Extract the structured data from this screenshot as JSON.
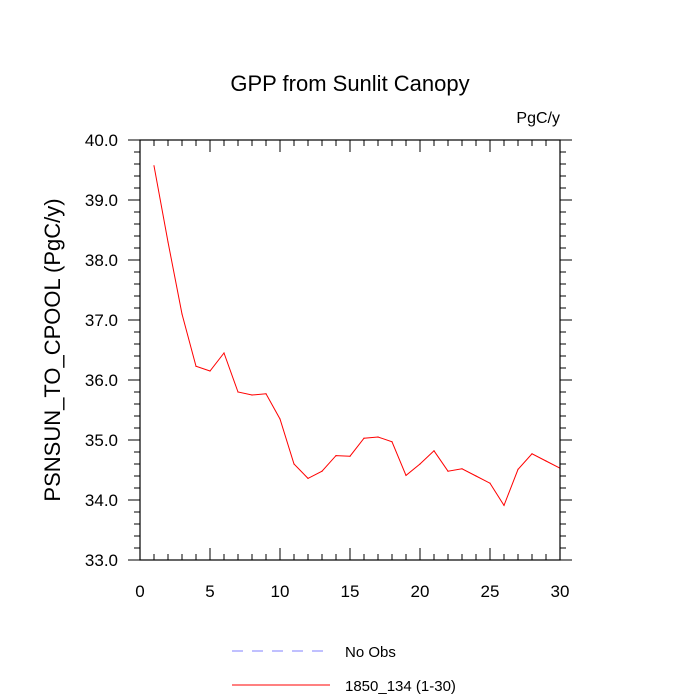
{
  "chart_data": {
    "type": "line",
    "title": "GPP from Sunlit Canopy",
    "units_label": "PgC/y",
    "xlabel": "",
    "ylabel": "PSNSUN_TO_CPOOL  (PgC/y)",
    "xlim": [
      0,
      30
    ],
    "ylim": [
      33.0,
      40.0
    ],
    "x_ticks": [
      "0",
      "5",
      "10",
      "15",
      "20",
      "25",
      "30"
    ],
    "y_ticks": [
      "33.0",
      "34.0",
      "35.0",
      "36.0",
      "37.0",
      "38.0",
      "39.0",
      "40.0"
    ],
    "grid": false,
    "legend_position": "bottom",
    "series": [
      {
        "name": "1850_134 (1-30)",
        "color": "#ff0000",
        "style": "solid",
        "x": [
          1,
          2,
          3,
          4,
          5,
          6,
          7,
          8,
          9,
          10,
          11,
          12,
          13,
          14,
          15,
          16,
          17,
          18,
          19,
          20,
          21,
          22,
          23,
          24,
          25,
          26,
          27,
          28,
          29,
          30
        ],
        "y": [
          39.57,
          38.3,
          37.1,
          36.23,
          36.15,
          36.45,
          35.8,
          35.75,
          35.77,
          35.35,
          34.6,
          34.36,
          34.48,
          34.74,
          34.73,
          35.03,
          35.05,
          34.97,
          34.41,
          34.6,
          34.82,
          34.48,
          34.52,
          34.4,
          34.28,
          33.91,
          34.51,
          34.77,
          34.65,
          34.53
        ]
      }
    ],
    "legend": [
      {
        "label": "No Obs",
        "color": "#8080ff",
        "style": "dashed"
      },
      {
        "label": "1850_134 (1-30)",
        "color": "#ff0000",
        "style": "solid"
      }
    ]
  }
}
